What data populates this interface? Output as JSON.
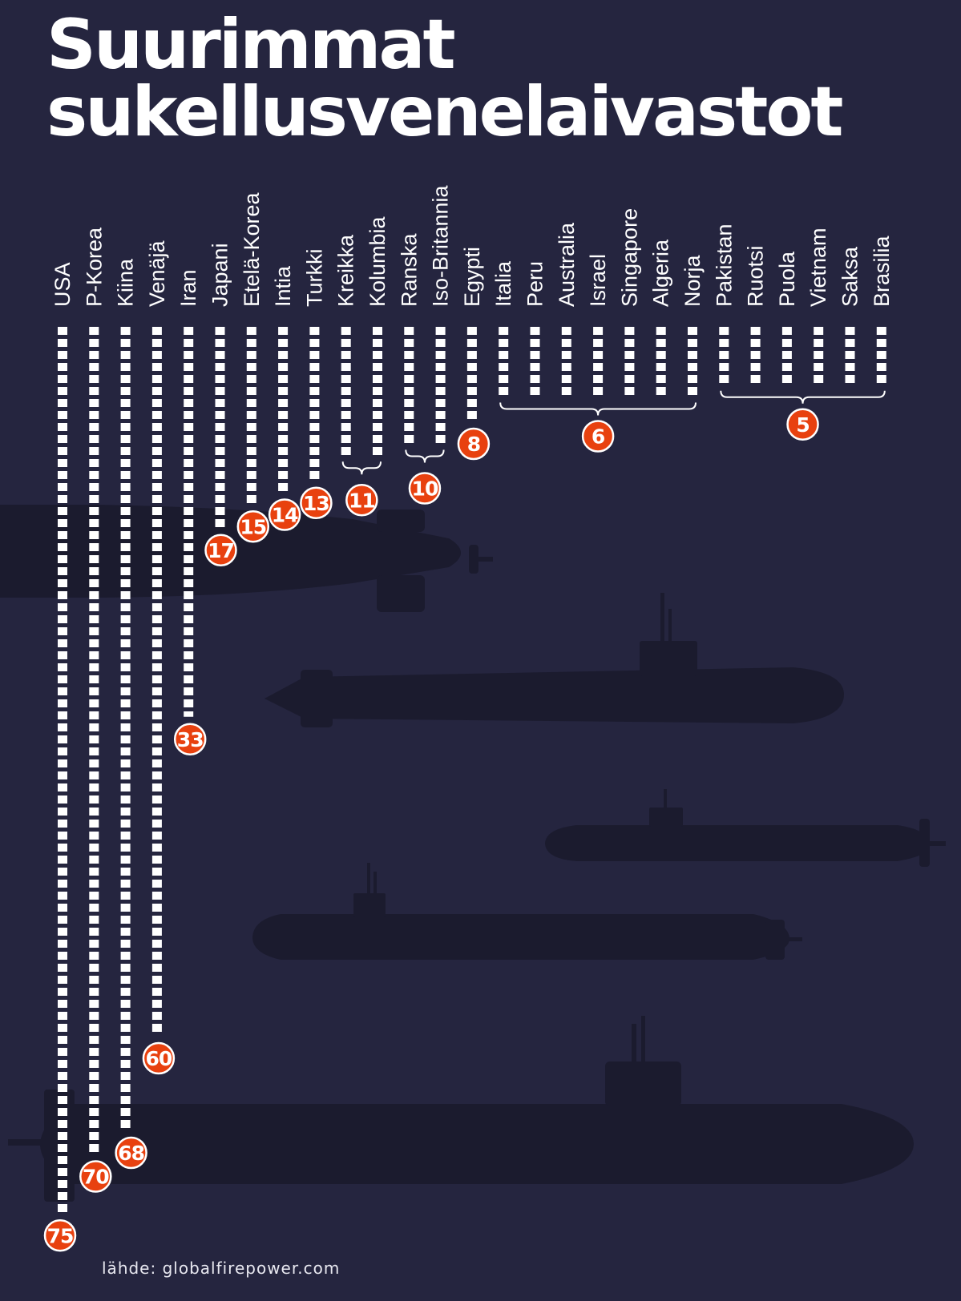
{
  "title": {
    "line1": "Suurimmat",
    "line2": "sukellusvenelaivastot"
  },
  "source": "lähde: globalfirepower.com",
  "colors": {
    "background": "#25253f",
    "bar": "#ffffff",
    "badge": "#e8410f",
    "silhouette": "#1b1b2e"
  },
  "chart_data": {
    "type": "bar",
    "orientation": "vertical-down",
    "title": "Suurimmat sukellusvenelaivastot",
    "categories": [
      "USA",
      "P-Korea",
      "Kiina",
      "Venäjä",
      "Iran",
      "Japani",
      "Etelä-Korea",
      "Intia",
      "Turkki",
      "Kreikka",
      "Kolumbia",
      "Ranska",
      "Iso-Britannia",
      "Egypti",
      "Italia",
      "Peru",
      "Australia",
      "Israel",
      "Singapore",
      "Algeria",
      "Norja",
      "Pakistan",
      "Ruotsi",
      "Puola",
      "Vietnam",
      "Saksa",
      "Brasilia"
    ],
    "values": [
      75,
      70,
      68,
      60,
      33,
      17,
      15,
      14,
      13,
      11,
      11,
      10,
      10,
      8,
      6,
      6,
      6,
      6,
      6,
      6,
      6,
      5,
      5,
      5,
      5,
      5,
      5
    ],
    "group_labels": [
      {
        "categories": [
          "Kreikka",
          "Kolumbia"
        ],
        "label": "11"
      },
      {
        "categories": [
          "Ranska",
          "Iso-Britannia"
        ],
        "label": "10"
      },
      {
        "categories": [
          "Italia",
          "Peru",
          "Australia",
          "Israel",
          "Singapore",
          "Algeria",
          "Norja"
        ],
        "label": "6"
      },
      {
        "categories": [
          "Pakistan",
          "Ruotsi",
          "Puola",
          "Vietnam",
          "Saksa",
          "Brasilia"
        ],
        "label": "5"
      }
    ],
    "single_labels": [
      "75",
      "70",
      "68",
      "60",
      "33",
      "17",
      "15",
      "14",
      "13",
      "8"
    ]
  }
}
